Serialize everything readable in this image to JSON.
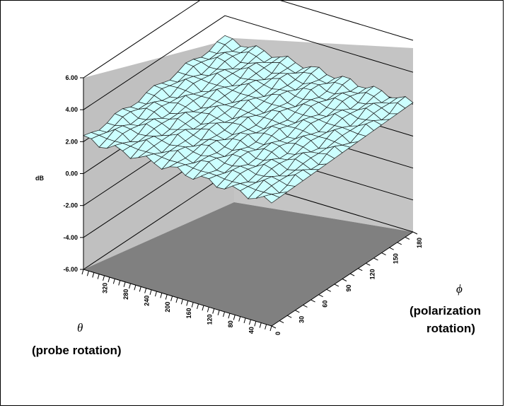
{
  "chart_data": {
    "type": "surface",
    "zlabel": "dB",
    "zlim": [
      -6,
      6
    ],
    "z_ticks": [
      "6.00",
      "4.00",
      "2.00",
      "0.00",
      "-2.00",
      "-4.00",
      "-6.00"
    ],
    "theta_label_symbol": "θ",
    "theta_label": "(probe rotation)",
    "theta_ticks": [
      "320",
      "280",
      "240",
      "200",
      "160",
      "120",
      "80",
      "40"
    ],
    "phi_label_symbol": "ϕ",
    "phi_label_line1": "(polarization",
    "phi_label_line2": "rotation)",
    "phi_ticks": [
      "0",
      "30",
      "60",
      "90",
      "120",
      "150",
      "180"
    ],
    "surface": {
      "theta_range": [
        0,
        360
      ],
      "phi_range": [
        0,
        180
      ],
      "z_approx": [
        1.0,
        3.0
      ],
      "description_level": "approximately flat between about 1 and 3 dB"
    },
    "colors": {
      "surface_fill": "#ccffff",
      "wall": "#c0c0c0",
      "floor": "#808080"
    },
    "grid": true
  }
}
